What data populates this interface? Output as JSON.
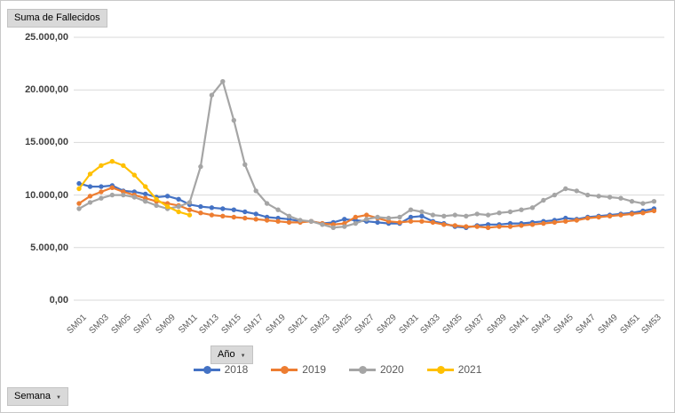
{
  "pivot_buttons": {
    "value_field": "Suma de Fallecidos",
    "legend_field": "Año",
    "axis_field": "Semana"
  },
  "chart_data": {
    "type": "line",
    "title": "Suma de Fallecidos",
    "xlabel": "Semana",
    "ylabel": "Suma de Fallecidos",
    "ylim": [
      0,
      25000
    ],
    "grid": true,
    "legend_position": "bottom",
    "marker": "circle",
    "x_tick_step": 2,
    "y_ticks": [
      {
        "value": 0,
        "label": "0,00"
      },
      {
        "value": 5000,
        "label": "5.000,00"
      },
      {
        "value": 10000,
        "label": "10.000,00"
      },
      {
        "value": 15000,
        "label": "15.000,00"
      },
      {
        "value": 20000,
        "label": "20.000,00"
      },
      {
        "value": 25000,
        "label": "25.000,00"
      }
    ],
    "categories": [
      "SM01",
      "SM02",
      "SM03",
      "SM04",
      "SM05",
      "SM06",
      "SM07",
      "SM08",
      "SM09",
      "SM10",
      "SM11",
      "SM12",
      "SM13",
      "SM14",
      "SM15",
      "SM16",
      "SM17",
      "SM18",
      "SM19",
      "SM20",
      "SM21",
      "SM22",
      "SM23",
      "SM24",
      "SM25",
      "SM26",
      "SM27",
      "SM28",
      "SM29",
      "SM30",
      "SM31",
      "SM32",
      "SM33",
      "SM34",
      "SM35",
      "SM36",
      "SM37",
      "SM38",
      "SM39",
      "SM40",
      "SM41",
      "SM42",
      "SM43",
      "SM44",
      "SM45",
      "SM46",
      "SM47",
      "SM48",
      "SM49",
      "SM50",
      "SM51",
      "SM52",
      "SM53"
    ],
    "series": [
      {
        "name": "2018",
        "color": "#4472C4",
        "values": [
          11100,
          10800,
          10800,
          10900,
          10400,
          10300,
          10100,
          9800,
          9900,
          9600,
          9100,
          8900,
          8800,
          8700,
          8600,
          8400,
          8200,
          7900,
          7800,
          7700,
          7500,
          7500,
          7300,
          7400,
          7700,
          7600,
          7500,
          7400,
          7300,
          7300,
          7900,
          8000,
          7500,
          7300,
          7000,
          6900,
          7100,
          7200,
          7200,
          7300,
          7300,
          7400,
          7500,
          7600,
          7800,
          7700,
          7900,
          8000,
          8100,
          8200,
          8300,
          8500,
          8700
        ]
      },
      {
        "name": "2019",
        "color": "#ED7D31",
        "values": [
          9200,
          9900,
          10300,
          10700,
          10300,
          10000,
          9700,
          9400,
          9200,
          9000,
          8600,
          8300,
          8100,
          8000,
          7900,
          7800,
          7700,
          7600,
          7500,
          7400,
          7400,
          7500,
          7300,
          7200,
          7300,
          7900,
          8100,
          7800,
          7500,
          7400,
          7500,
          7500,
          7400,
          7200,
          7100,
          7000,
          7000,
          6900,
          7000,
          7000,
          7100,
          7200,
          7300,
          7400,
          7500,
          7600,
          7800,
          7900,
          8000,
          8100,
          8200,
          8300,
          8500
        ]
      },
      {
        "name": "2020",
        "color": "#A5A5A5",
        "values": [
          8700,
          9300,
          9700,
          10000,
          10000,
          9800,
          9400,
          9000,
          8700,
          8900,
          9300,
          12700,
          19500,
          20800,
          17100,
          12900,
          10400,
          9200,
          8600,
          8000,
          7600,
          7500,
          7200,
          6900,
          7000,
          7300,
          7700,
          7900,
          7800,
          7900,
          8600,
          8400,
          8100,
          8000,
          8100,
          8000,
          8200,
          8100,
          8300,
          8400,
          8600,
          8800,
          9500,
          10000,
          10600,
          10400,
          10000,
          9900,
          9800,
          9700,
          9400,
          9200,
          9400
        ]
      },
      {
        "name": "2021",
        "color": "#FFC000",
        "values": [
          10600,
          12000,
          12800,
          13200,
          12800,
          11900,
          10800,
          9600,
          8900,
          8400,
          8100
        ]
      }
    ]
  }
}
